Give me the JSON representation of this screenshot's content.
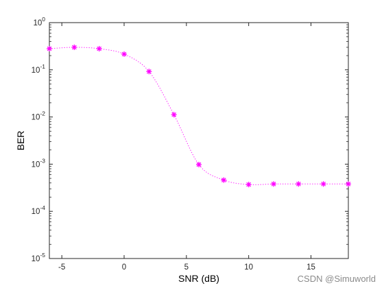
{
  "chart_data": {
    "type": "line",
    "title": "",
    "xlabel": "SNR (dB)",
    "ylabel": "BER",
    "xlim": [
      -6,
      18
    ],
    "ylim": [
      1e-05,
      1
    ],
    "y_scale": "log",
    "grid": false,
    "x_ticks": [
      -5,
      0,
      5,
      10,
      15
    ],
    "y_tick_exponents": [
      0,
      -1,
      -2,
      -3,
      -4,
      -5
    ],
    "y_tick_base": "10",
    "series": [
      {
        "color": "#ff00ff",
        "line_style": "dotted",
        "marker": "asterisk",
        "x": [
          -6,
          -4,
          -2,
          0,
          2,
          4,
          6,
          8,
          10,
          12,
          14,
          16,
          18
        ],
        "y": [
          0.28,
          0.3,
          0.28,
          0.215,
          0.092,
          0.0112,
          0.00098,
          0.00046,
          0.00037,
          0.00038,
          0.00038,
          0.00038,
          0.00038
        ]
      }
    ]
  },
  "watermark": "CSDN @Simuworld"
}
